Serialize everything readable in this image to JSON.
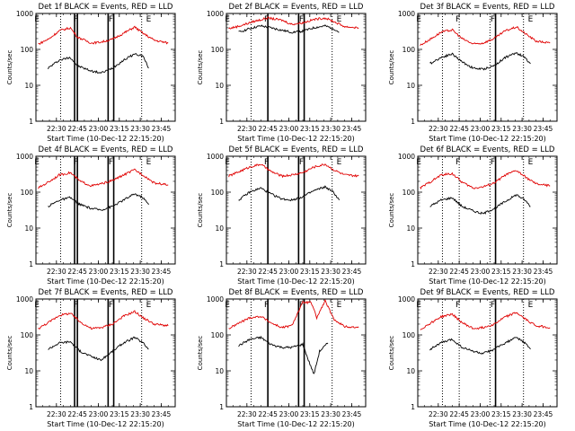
{
  "figure": {
    "common_xlabel": "Start Time (10-Dec-12 22:15:20)",
    "ylabel": "Counts/sec",
    "colors": {
      "events": "#000000",
      "lld": "#e00000",
      "axes": "#000000",
      "background": "#ffffff"
    }
  },
  "chart_data": [
    {
      "type": "line",
      "title": "Det 1f BLACK = Events, RED = LLD",
      "xlabel": "Start Time (10-Dec-12 22:15:20)",
      "ylabel": "Counts/sec",
      "yscale": "log",
      "ylim": [
        1,
        1000
      ],
      "xlim": [
        "22:15:20",
        "23:55"
      ],
      "xticks": [
        "22:30",
        "22:45",
        "23:00",
        "23:15",
        "23:30",
        "23:45"
      ],
      "yticks": [
        "1",
        "10",
        "100",
        "1000"
      ],
      "markers": [
        {
          "label": "E",
          "time": "22:16"
        },
        {
          "label": "F",
          "time": "22:44"
        },
        {
          "label": "F",
          "time": "23:09"
        },
        {
          "label": "E",
          "time": "23:36"
        }
      ],
      "lines": {
        "thick": [
          "22:43",
          "22:45",
          "23:07",
          "23:11"
        ],
        "dotted": [
          "22:33",
          "23:31"
        ]
      },
      "series": [
        {
          "name": "BLACK = Events",
          "x": [
            "22:24",
            "22:32",
            "22:40",
            "22:45",
            "22:55",
            "23:02",
            "23:10",
            "23:18",
            "23:26",
            "23:32",
            "23:36"
          ],
          "values": [
            30,
            50,
            60,
            35,
            25,
            22,
            30,
            50,
            75,
            65,
            30
          ]
        },
        {
          "name": "RED = LLD",
          "x": [
            "22:17",
            "22:25",
            "22:32",
            "22:40",
            "22:45",
            "22:55",
            "23:02",
            "23:10",
            "23:18",
            "23:26",
            "23:32",
            "23:40",
            "23:50"
          ],
          "values": [
            140,
            200,
            330,
            400,
            220,
            150,
            160,
            190,
            280,
            420,
            280,
            180,
            150
          ]
        }
      ]
    },
    {
      "type": "line",
      "title": "Det 2f BLACK = Events, RED = LLD",
      "xlabel": "Start Time (10-Dec-12 22:15:20)",
      "ylabel": "Counts/sec",
      "yscale": "log",
      "ylim": [
        1,
        1000
      ],
      "xlim": [
        "22:15:20",
        "23:55"
      ],
      "xticks": [
        "22:30",
        "22:45",
        "23:00",
        "23:15",
        "23:30",
        "23:45"
      ],
      "yticks": [
        "1",
        "10",
        "100",
        "1000"
      ],
      "markers": [
        {
          "label": "E",
          "time": "22:16"
        },
        {
          "label": "F",
          "time": "22:44"
        },
        {
          "label": "F",
          "time": "23:09"
        },
        {
          "label": "E",
          "time": "23:36"
        }
      ],
      "lines": {
        "thick": [
          "22:45",
          "23:07",
          "23:11"
        ],
        "dotted": [
          "22:33",
          "23:31"
        ]
      },
      "series": [
        {
          "name": "BLACK = Events",
          "x": [
            "22:24",
            "22:32",
            "22:40",
            "22:47",
            "22:55",
            "23:02",
            "23:10",
            "23:18",
            "23:26",
            "23:32",
            "23:36"
          ],
          "values": [
            300,
            380,
            450,
            400,
            340,
            300,
            320,
            400,
            450,
            380,
            300
          ]
        },
        {
          "name": "RED = LLD",
          "x": [
            "22:17",
            "22:25",
            "22:35",
            "22:45",
            "22:55",
            "23:02",
            "23:10",
            "23:18",
            "23:26",
            "23:32",
            "23:40",
            "23:50"
          ],
          "values": [
            380,
            450,
            600,
            750,
            650,
            500,
            550,
            680,
            750,
            600,
            430,
            400
          ]
        }
      ]
    },
    {
      "type": "line",
      "title": "Det 3f BLACK = Events, RED = LLD",
      "xlabel": "Start Time (10-Dec-12 22:15:20)",
      "ylabel": "Counts/sec",
      "yscale": "log",
      "ylim": [
        1,
        1000
      ],
      "xlim": [
        "22:15:20",
        "23:55"
      ],
      "xticks": [
        "22:30",
        "22:45",
        "23:00",
        "23:15",
        "23:30",
        "23:45"
      ],
      "yticks": [
        "1",
        "10",
        "100",
        "1000"
      ],
      "markers": [
        {
          "label": "E",
          "time": "22:16"
        },
        {
          "label": "F",
          "time": "22:44"
        },
        {
          "label": "F",
          "time": "23:09"
        },
        {
          "label": "E",
          "time": "23:36"
        }
      ],
      "lines": {
        "thick": [
          "23:11"
        ],
        "dotted": [
          "22:33",
          "22:45",
          "23:07",
          "23:31"
        ]
      },
      "series": [
        {
          "name": "BLACK = Events",
          "x": [
            "22:24",
            "22:32",
            "22:40",
            "22:47",
            "22:55",
            "23:02",
            "23:10",
            "23:18",
            "23:26",
            "23:32",
            "23:36"
          ],
          "values": [
            40,
            60,
            75,
            45,
            30,
            28,
            35,
            60,
            80,
            60,
            40
          ]
        },
        {
          "name": "RED = LLD",
          "x": [
            "22:17",
            "22:25",
            "22:32",
            "22:40",
            "22:47",
            "22:55",
            "23:02",
            "23:10",
            "23:18",
            "23:26",
            "23:32",
            "23:40",
            "23:50"
          ],
          "values": [
            130,
            200,
            300,
            350,
            200,
            140,
            150,
            200,
            330,
            420,
            280,
            170,
            150
          ]
        }
      ]
    },
    {
      "type": "line",
      "title": "Det 4f BLACK = Events, RED = LLD",
      "xlabel": "Start Time (10-Dec-12 22:15:20)",
      "ylabel": "Counts/sec",
      "yscale": "log",
      "ylim": [
        1,
        1000
      ],
      "xlim": [
        "22:15:20",
        "23:55"
      ],
      "xticks": [
        "22:30",
        "22:45",
        "23:00",
        "23:15",
        "23:30",
        "23:45"
      ],
      "yticks": [
        "1",
        "10",
        "100",
        "1000"
      ],
      "markers": [
        {
          "label": "E",
          "time": "22:16"
        },
        {
          "label": "F",
          "time": "22:44"
        },
        {
          "label": "F",
          "time": "23:09"
        },
        {
          "label": "E",
          "time": "23:36"
        }
      ],
      "lines": {
        "thick": [
          "22:43",
          "22:45",
          "23:07",
          "23:11"
        ],
        "dotted": [
          "22:33",
          "23:31"
        ]
      },
      "series": [
        {
          "name": "BLACK = Events",
          "x": [
            "22:24",
            "22:32",
            "22:40",
            "22:47",
            "22:55",
            "23:02",
            "23:10",
            "23:18",
            "23:26",
            "23:32",
            "23:36"
          ],
          "values": [
            40,
            60,
            70,
            45,
            35,
            32,
            40,
            60,
            90,
            70,
            45
          ]
        },
        {
          "name": "RED = LLD",
          "x": [
            "22:17",
            "22:25",
            "22:32",
            "22:40",
            "22:47",
            "22:55",
            "23:02",
            "23:10",
            "23:18",
            "23:26",
            "23:32",
            "23:40",
            "23:50"
          ],
          "values": [
            130,
            200,
            300,
            350,
            200,
            150,
            170,
            210,
            300,
            420,
            300,
            180,
            160
          ]
        }
      ]
    },
    {
      "type": "line",
      "title": "Det 5f BLACK = Events, RED = LLD",
      "xlabel": "Start Time (10-Dec-12 22:15:20)",
      "ylabel": "Counts/sec",
      "yscale": "log",
      "ylim": [
        1,
        1000
      ],
      "xlim": [
        "22:15:20",
        "23:55"
      ],
      "xticks": [
        "22:30",
        "22:45",
        "23:00",
        "23:15",
        "23:30",
        "23:45"
      ],
      "yticks": [
        "1",
        "10",
        "100",
        "1000"
      ],
      "markers": [
        {
          "label": "E",
          "time": "22:16"
        },
        {
          "label": "F",
          "time": "22:44"
        },
        {
          "label": "F",
          "time": "23:09"
        },
        {
          "label": "E",
          "time": "23:36"
        }
      ],
      "lines": {
        "thick": [
          "22:45",
          "23:07",
          "23:11"
        ],
        "dotted": [
          "22:33",
          "23:31"
        ]
      },
      "series": [
        {
          "name": "BLACK = Events",
          "x": [
            "22:24",
            "22:32",
            "22:40",
            "22:47",
            "22:55",
            "23:02",
            "23:10",
            "23:18",
            "23:26",
            "23:32",
            "23:36"
          ],
          "values": [
            60,
            100,
            130,
            90,
            65,
            60,
            75,
            110,
            140,
            100,
            60
          ]
        },
        {
          "name": "RED = LLD",
          "x": [
            "22:17",
            "22:25",
            "22:32",
            "22:40",
            "22:47",
            "22:55",
            "23:02",
            "23:10",
            "23:18",
            "23:26",
            "23:32",
            "23:40",
            "23:50"
          ],
          "values": [
            280,
            380,
            500,
            600,
            380,
            280,
            300,
            350,
            500,
            600,
            420,
            300,
            280
          ]
        }
      ]
    },
    {
      "type": "line",
      "title": "Det 6f BLACK = Events, RED = LLD",
      "xlabel": "Start Time (10-Dec-12 22:15:20)",
      "ylabel": "Counts/sec",
      "yscale": "log",
      "ylim": [
        1,
        1000
      ],
      "xlim": [
        "22:15:20",
        "23:55"
      ],
      "xticks": [
        "22:30",
        "22:45",
        "23:00",
        "23:15",
        "23:30",
        "23:45"
      ],
      "yticks": [
        "1",
        "10",
        "100",
        "1000"
      ],
      "markers": [
        {
          "label": "E",
          "time": "22:16"
        },
        {
          "label": "F",
          "time": "22:44"
        },
        {
          "label": "F",
          "time": "23:09"
        },
        {
          "label": "E",
          "time": "23:36"
        }
      ],
      "lines": {
        "thick": [
          "23:11"
        ],
        "dotted": [
          "22:33",
          "22:45",
          "23:07",
          "23:31"
        ]
      },
      "series": [
        {
          "name": "BLACK = Events",
          "x": [
            "22:24",
            "22:32",
            "22:40",
            "22:47",
            "22:55",
            "23:02",
            "23:10",
            "23:18",
            "23:26",
            "23:32",
            "23:36"
          ],
          "values": [
            40,
            60,
            70,
            40,
            30,
            25,
            35,
            55,
            85,
            60,
            40
          ]
        },
        {
          "name": "RED = LLD",
          "x": [
            "22:17",
            "22:25",
            "22:32",
            "22:40",
            "22:47",
            "22:55",
            "23:02",
            "23:10",
            "23:18",
            "23:26",
            "23:32",
            "23:40",
            "23:50"
          ],
          "values": [
            130,
            200,
            300,
            330,
            190,
            130,
            140,
            180,
            300,
            400,
            270,
            170,
            150
          ]
        }
      ]
    },
    {
      "type": "line",
      "title": "Det 7f BLACK = Events, RED = LLD",
      "xlabel": "Start Time (10-Dec-12 22:15:20)",
      "ylabel": "Counts/sec",
      "yscale": "log",
      "ylim": [
        1,
        1000
      ],
      "xlim": [
        "22:15:20",
        "23:55"
      ],
      "xticks": [
        "22:30",
        "22:45",
        "23:00",
        "23:15",
        "23:30",
        "23:45"
      ],
      "yticks": [
        "1",
        "10",
        "100",
        "1000"
      ],
      "markers": [
        {
          "label": "E",
          "time": "22:16"
        },
        {
          "label": "F",
          "time": "22:44"
        },
        {
          "label": "F",
          "time": "23:09"
        },
        {
          "label": "E",
          "time": "23:36"
        }
      ],
      "lines": {
        "thick": [
          "22:43",
          "22:45",
          "23:07",
          "23:11"
        ],
        "dotted": [
          "22:33",
          "23:31"
        ]
      },
      "series": [
        {
          "name": "BLACK = Events",
          "x": [
            "22:24",
            "22:32",
            "22:40",
            "22:47",
            "22:55",
            "23:02",
            "23:10",
            "23:18",
            "23:26",
            "23:32",
            "23:36"
          ],
          "values": [
            40,
            60,
            65,
            35,
            25,
            20,
            35,
            60,
            85,
            60,
            40
          ]
        },
        {
          "name": "RED = LLD",
          "x": [
            "22:17",
            "22:25",
            "22:32",
            "22:40",
            "22:47",
            "22:55",
            "23:02",
            "23:10",
            "23:18",
            "23:26",
            "23:32",
            "23:40",
            "23:50"
          ],
          "values": [
            150,
            230,
            350,
            400,
            230,
            150,
            160,
            200,
            330,
            450,
            300,
            200,
            180
          ]
        }
      ]
    },
    {
      "type": "line",
      "title": "Det 8f BLACK = Events, RED = LLD",
      "xlabel": "Start Time (10-Dec-12 22:15:20)",
      "ylabel": "Counts/sec",
      "yscale": "log",
      "ylim": [
        1,
        1000
      ],
      "xlim": [
        "22:15:20",
        "23:55"
      ],
      "xticks": [
        "22:30",
        "22:45",
        "23:00",
        "23:15",
        "23:30",
        "23:45"
      ],
      "yticks": [
        "1",
        "10",
        "100",
        "1000"
      ],
      "markers": [
        {
          "label": "E",
          "time": "22:16"
        },
        {
          "label": "F",
          "time": "22:44"
        },
        {
          "label": "F",
          "time": "23:09"
        },
        {
          "label": "E",
          "time": "23:36"
        }
      ],
      "lines": {
        "thick": [
          "22:45",
          "23:07",
          "23:11"
        ],
        "dotted": [
          "22:33",
          "23:31"
        ]
      },
      "series": [
        {
          "name": "BLACK = Events",
          "x": [
            "22:24",
            "22:32",
            "22:40",
            "22:47",
            "22:55",
            "23:02",
            "23:10",
            "23:14",
            "23:18",
            "23:22",
            "23:28"
          ],
          "values": [
            50,
            75,
            85,
            55,
            45,
            45,
            55,
            20,
            8,
            35,
            60
          ]
        },
        {
          "name": "RED = LLD",
          "x": [
            "22:17",
            "22:25",
            "22:32",
            "22:40",
            "22:47",
            "22:55",
            "23:02",
            "23:10",
            "23:16",
            "23:20",
            "23:26",
            "23:32",
            "23:40",
            "23:50"
          ],
          "values": [
            150,
            220,
            300,
            330,
            220,
            160,
            180,
            800,
            800,
            300,
            900,
            280,
            170,
            160
          ]
        }
      ]
    },
    {
      "type": "line",
      "title": "Det 9f BLACK = Events, RED = LLD",
      "xlabel": "Start Time (10-Dec-12 22:15:20)",
      "ylabel": "Counts/sec",
      "yscale": "log",
      "ylim": [
        1,
        1000
      ],
      "xlim": [
        "22:15:20",
        "23:55"
      ],
      "xticks": [
        "22:30",
        "22:45",
        "23:00",
        "23:15",
        "23:30",
        "23:45"
      ],
      "yticks": [
        "1",
        "10",
        "100",
        "1000"
      ],
      "markers": [
        {
          "label": "E",
          "time": "22:16"
        },
        {
          "label": "F",
          "time": "22:44"
        },
        {
          "label": "F",
          "time": "23:09"
        },
        {
          "label": "E",
          "time": "23:36"
        }
      ],
      "lines": {
        "thick": [
          "23:11"
        ],
        "dotted": [
          "22:33",
          "22:45",
          "23:07",
          "23:31"
        ]
      },
      "series": [
        {
          "name": "BLACK = Events",
          "x": [
            "22:24",
            "22:32",
            "22:40",
            "22:47",
            "22:55",
            "23:02",
            "23:10",
            "23:18",
            "23:26",
            "23:32",
            "23:36"
          ],
          "values": [
            40,
            60,
            75,
            45,
            35,
            30,
            40,
            60,
            85,
            60,
            40
          ]
        },
        {
          "name": "RED = LLD",
          "x": [
            "22:17",
            "22:25",
            "22:32",
            "22:40",
            "22:47",
            "22:55",
            "23:02",
            "23:10",
            "23:18",
            "23:26",
            "23:32",
            "23:40",
            "23:50"
          ],
          "values": [
            140,
            220,
            320,
            380,
            220,
            150,
            160,
            200,
            320,
            420,
            280,
            180,
            160
          ]
        }
      ]
    }
  ]
}
